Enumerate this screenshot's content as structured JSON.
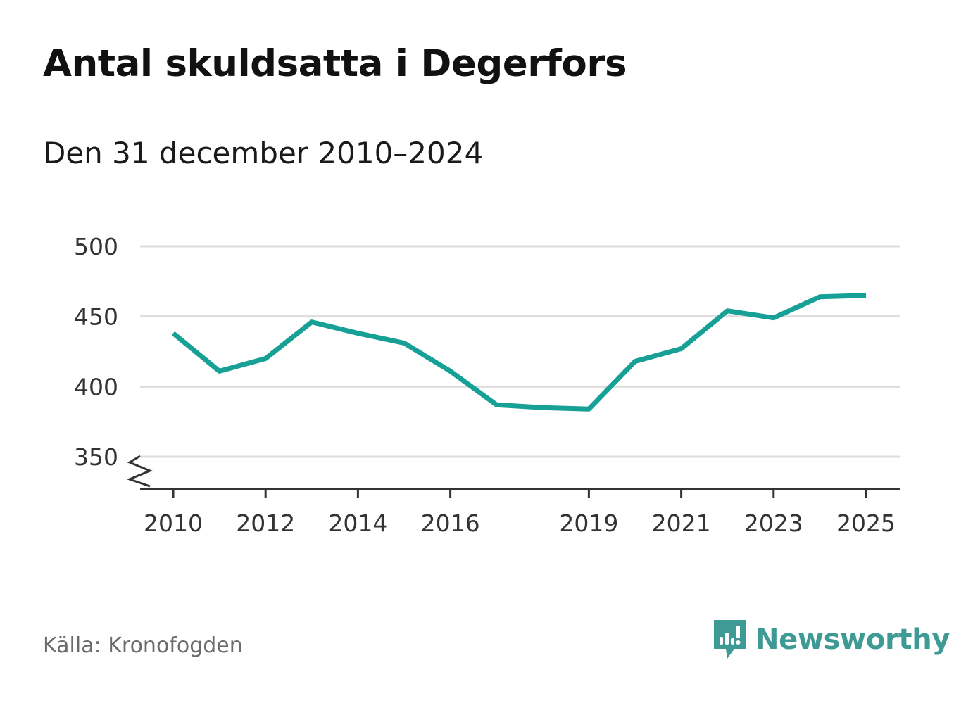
{
  "title": "Antal skuldsatta i Degerfors",
  "subtitle": "Den 31 december 2010–2024",
  "source": "Källa: Kronofogden",
  "brand": {
    "name": "Newsworthy",
    "icon": "newsworthy-logo-icon",
    "color": "#3e9a94"
  },
  "colors": {
    "line": "#16a096",
    "grid": "#dddddd",
    "axis": "#333333"
  },
  "chart_data": {
    "type": "line",
    "title": "Antal skuldsatta i Degerfors",
    "subtitle": "Den 31 december 2010–2024",
    "xlabel": "",
    "ylabel": "",
    "xlim": [
      2010,
      2025
    ],
    "ylim": [
      327,
      500
    ],
    "y_axis_break": true,
    "grid": true,
    "x_ticks": [
      2010,
      2012,
      2014,
      2016,
      2019,
      2021,
      2023,
      2025
    ],
    "y_ticks": [
      350,
      400,
      450,
      500
    ],
    "series": [
      {
        "name": "Antal skuldsatta",
        "x": [
          2010,
          2011,
          2012,
          2013,
          2014,
          2015,
          2016,
          2017,
          2018,
          2019,
          2020,
          2021,
          2022,
          2023,
          2024,
          2025
        ],
        "values": [
          438,
          411,
          420,
          446,
          438,
          431,
          411,
          387,
          385,
          384,
          418,
          427,
          454,
          449,
          464,
          465
        ]
      }
    ]
  }
}
